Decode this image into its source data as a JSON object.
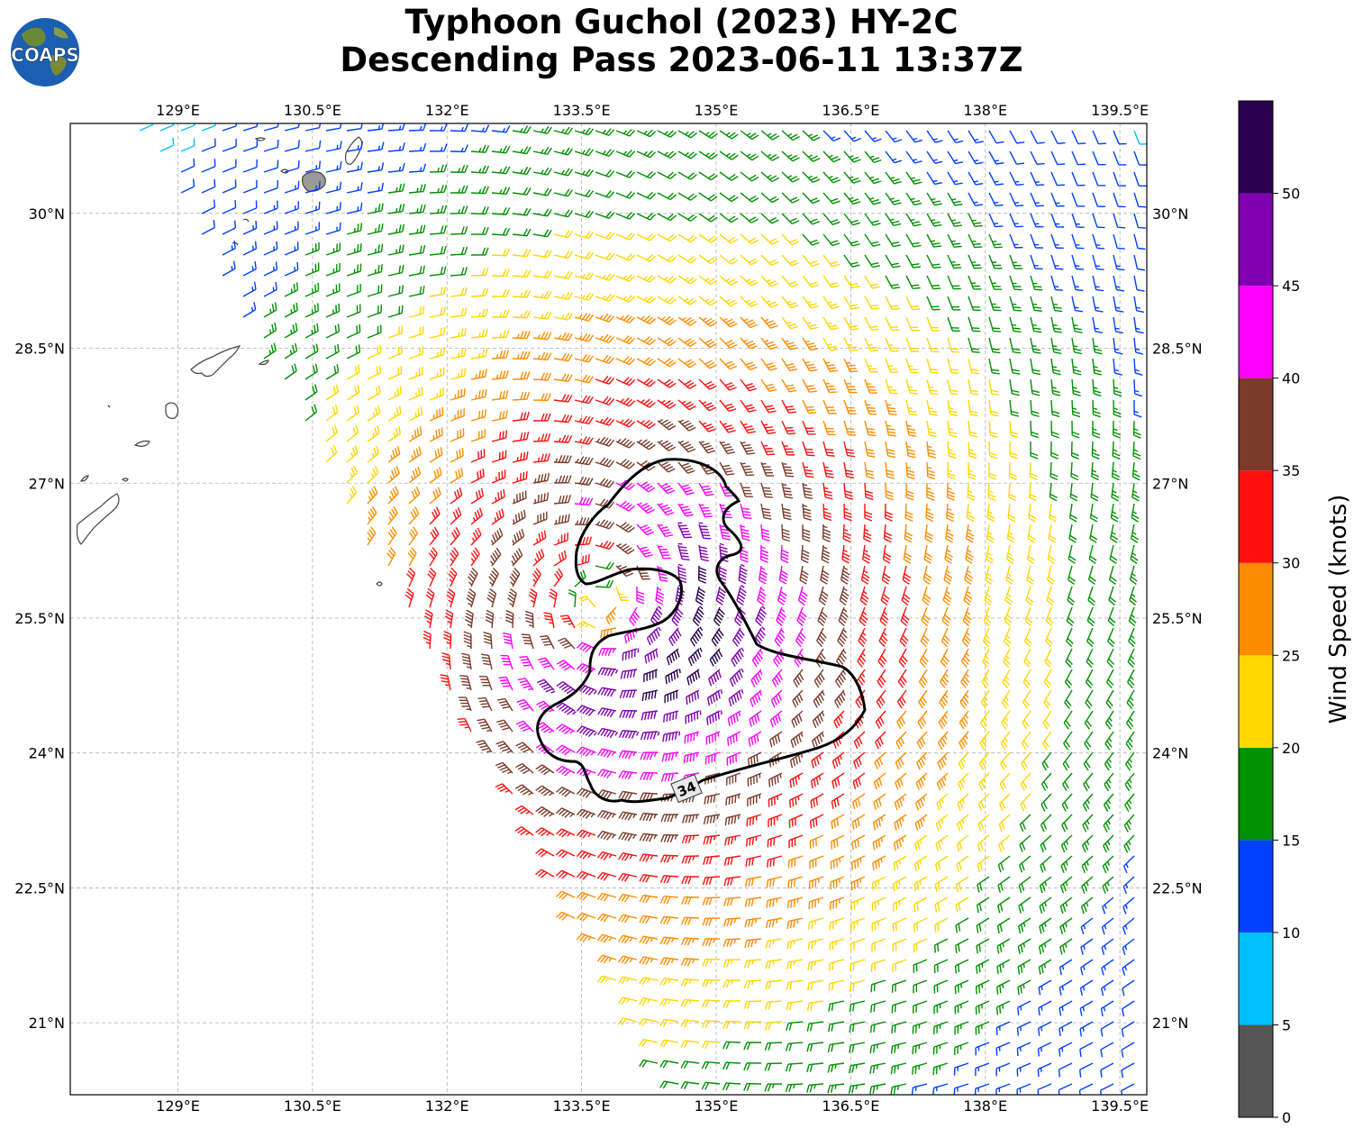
{
  "title": {
    "line1": "Typhoon Guchol (2023) HY-2C",
    "line2": "Descending Pass 2023-06-11 13:37Z"
  },
  "logo": {
    "text": "COAPS",
    "icon": "globe-logo-icon"
  },
  "map": {
    "lon_ticks": [
      "129°E",
      "130.5°E",
      "132°E",
      "133.5°E",
      "135°E",
      "136.5°E",
      "138°E",
      "139.5°E"
    ],
    "lat_ticks": [
      "30°N",
      "28.5°N",
      "27°N",
      "25.5°N",
      "24°N",
      "22.5°N",
      "21°N"
    ],
    "lon_range": [
      127.8,
      139.8
    ],
    "lat_range": [
      20.2,
      31.0
    ],
    "grid": true,
    "contour_label": "34",
    "center": {
      "lon": 133.7,
      "lat": 25.7
    }
  },
  "colorbar": {
    "label": "Wind Speed (knots)",
    "ticks": [
      "0",
      "5",
      "10",
      "15",
      "20",
      "25",
      "30",
      "35",
      "40",
      "45",
      "50"
    ],
    "bins": [
      {
        "min": 0,
        "max": 5,
        "color": "#555555"
      },
      {
        "min": 5,
        "max": 10,
        "color": "#00bfff"
      },
      {
        "min": 10,
        "max": 15,
        "color": "#0040ff"
      },
      {
        "min": 15,
        "max": 20,
        "color": "#009100"
      },
      {
        "min": 20,
        "max": 25,
        "color": "#ffd600"
      },
      {
        "min": 25,
        "max": 30,
        "color": "#ff8c00"
      },
      {
        "min": 30,
        "max": 35,
        "color": "#ff0f0f"
      },
      {
        "min": 35,
        "max": 40,
        "color": "#7b3a2a"
      },
      {
        "min": 40,
        "max": 45,
        "color": "#ff00ff"
      },
      {
        "min": 45,
        "max": 50,
        "color": "#8000b0"
      },
      {
        "min": 50,
        "max": 55,
        "color": "#2a0050"
      }
    ]
  }
}
